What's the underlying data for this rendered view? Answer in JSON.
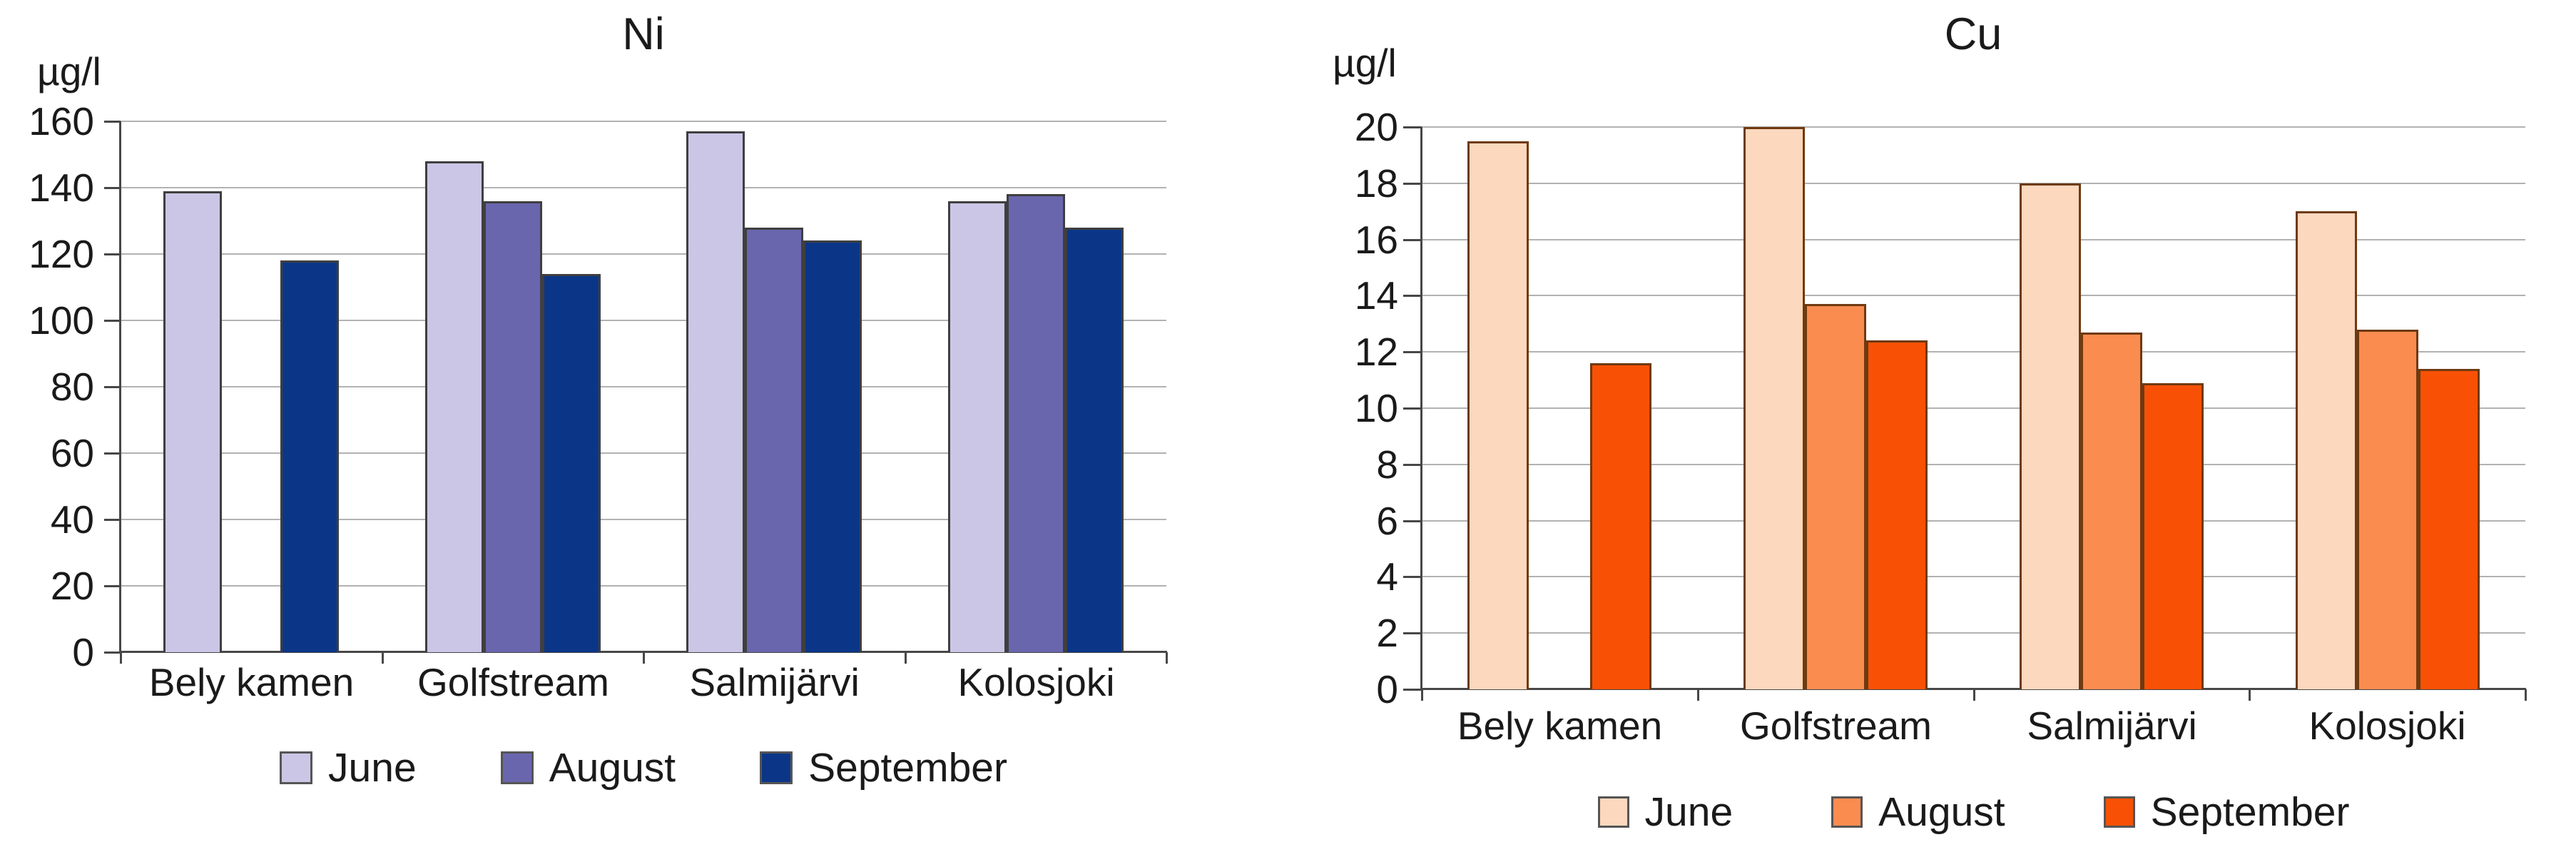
{
  "page": {
    "background": "#ffffff",
    "figure_type": "two side-by-side grouped bar charts of metal concentrations"
  },
  "chart_data": [
    {
      "id": "ni",
      "type": "bar",
      "title": "Ni",
      "unit_label": "µg/l",
      "categories": [
        "Bely kamen",
        "Golfstream",
        "Salmijärvi",
        "Kolosjoki"
      ],
      "series": [
        {
          "name": "June",
          "color": "#CBC6E6",
          "values": [
            139,
            148,
            157,
            136
          ]
        },
        {
          "name": "August",
          "color": "#6A66AE",
          "values": [
            null,
            136,
            128,
            138
          ]
        },
        {
          "name": "September",
          "color": "#0B3688",
          "values": [
            118,
            114,
            124,
            128
          ]
        }
      ],
      "ylim": [
        0,
        160
      ],
      "yticks": [
        0,
        20,
        40,
        60,
        80,
        100,
        120,
        140,
        160
      ],
      "grid": true,
      "legend_position": "bottom",
      "bar_border_color": "#3f3f3f",
      "gridline_color": "#b2b2b2",
      "axis_color": "#474747"
    },
    {
      "id": "cu",
      "type": "bar",
      "title": "Cu",
      "unit_label": "µg/l",
      "categories": [
        "Bely kamen",
        "Golfstream",
        "Salmijärvi",
        "Kolosjoki"
      ],
      "series": [
        {
          "name": "June",
          "color": "#FCD8BE",
          "values": [
            19.5,
            20,
            18,
            17
          ]
        },
        {
          "name": "August",
          "color": "#FA8C50",
          "values": [
            null,
            13.7,
            12.7,
            12.8
          ]
        },
        {
          "name": "September",
          "color": "#F85106",
          "values": [
            11.6,
            12.4,
            10.9,
            11.4
          ]
        }
      ],
      "ylim": [
        0,
        20
      ],
      "yticks": [
        0,
        2,
        4,
        6,
        8,
        10,
        12,
        14,
        16,
        18,
        20
      ],
      "grid": true,
      "legend_position": "bottom",
      "bar_border_color": "#6e3a10",
      "gridline_color": "#b2b2b2",
      "axis_color": "#474747"
    }
  ]
}
